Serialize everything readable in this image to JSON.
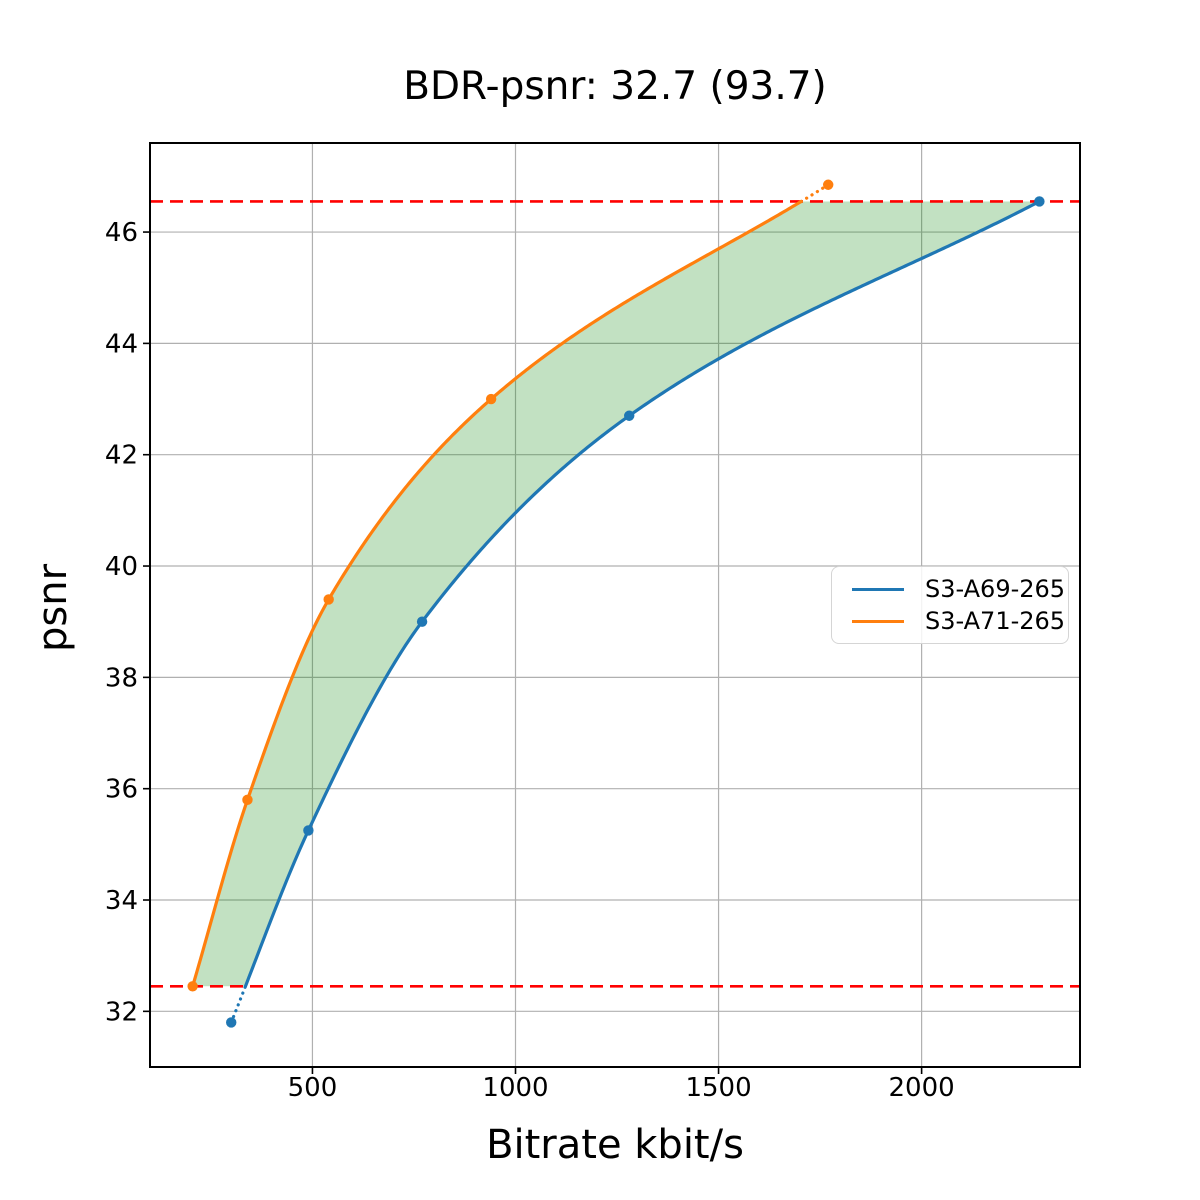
{
  "chart_data": {
    "type": "line",
    "title": "BDR-psnr: 32.7 (93.7)",
    "xlabel": "Bitrate kbit/s",
    "ylabel": "psnr",
    "xlim": [
      100,
      2390
    ],
    "ylim": [
      31.0,
      47.6
    ],
    "xticks": [
      "500",
      "1000",
      "1500",
      "2000"
    ],
    "yticks": [
      "32",
      "34",
      "36",
      "38",
      "40",
      "42",
      "44",
      "46"
    ],
    "grid": true,
    "legend_position": "center-right",
    "series": [
      {
        "name": "S3-A69-265",
        "color": "#1f77b4",
        "x": [
          300,
          490,
          770,
          1280,
          2290
        ],
        "y": [
          31.8,
          35.25,
          39.0,
          42.7,
          46.55
        ]
      },
      {
        "name": "S3-A71-265",
        "color": "#ff7f0e",
        "x": [
          205,
          340,
          540,
          940,
          1770
        ],
        "y": [
          32.45,
          35.8,
          39.4,
          43.0,
          46.85
        ]
      }
    ],
    "reference_lines": [
      {
        "y": 32.45,
        "color": "#ff0000",
        "style": "dashed"
      },
      {
        "y": 46.55,
        "color": "#ff0000",
        "style": "dashed"
      }
    ],
    "shaded_region": {
      "between_series": [
        "S3-A71-265",
        "S3-A69-265"
      ],
      "y_range": [
        32.45,
        46.55
      ],
      "color": "#008000",
      "alpha": 0.24
    },
    "colors": {
      "grid": "#b0b0b0",
      "spine": "#000000",
      "background": "#ffffff"
    }
  }
}
